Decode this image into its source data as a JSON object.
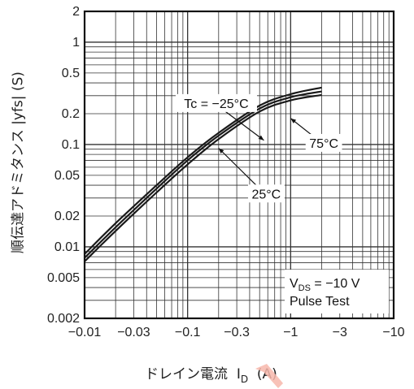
{
  "chart_data": {
    "type": "line",
    "xscale": "log",
    "yscale": "log",
    "xlim": [
      -0.01,
      -10
    ],
    "ylim": [
      0.002,
      2
    ],
    "x_ticks": [
      {
        "value": -0.01,
        "label": "−0.01"
      },
      {
        "value": -0.03,
        "label": "−0.03"
      },
      {
        "value": -0.1,
        "label": "−0.1"
      },
      {
        "value": -0.3,
        "label": "−0.3"
      },
      {
        "value": -1,
        "label": "−1"
      },
      {
        "value": -3,
        "label": "−3"
      },
      {
        "value": -10,
        "label": "−10"
      }
    ],
    "y_ticks": [
      {
        "value": 0.002,
        "label": "0.002"
      },
      {
        "value": 0.005,
        "label": "0.005"
      },
      {
        "value": 0.01,
        "label": "0.01"
      },
      {
        "value": 0.02,
        "label": "0.02"
      },
      {
        "value": 0.05,
        "label": "0.05"
      },
      {
        "value": 0.1,
        "label": "0.1"
      },
      {
        "value": 0.2,
        "label": "0.2"
      },
      {
        "value": 0.5,
        "label": "0.5"
      },
      {
        "value": 1,
        "label": "1"
      },
      {
        "value": 2,
        "label": "2"
      }
    ],
    "xlabel": "ドレイン電流",
    "xlabel_symbol": "I",
    "xlabel_subscript": "D",
    "xlabel_unit": "(A)",
    "ylabel": "順伝達アドミタンス |yfs| (S)",
    "grid": true,
    "series": [
      {
        "name": "Tc = −25°C",
        "color": "#1a1a1a",
        "x": [
          -0.01,
          -0.02,
          -0.05,
          -0.1,
          -0.2,
          -0.5,
          -1,
          -2
        ],
        "y": [
          0.0085,
          0.017,
          0.04,
          0.075,
          0.13,
          0.24,
          0.31,
          0.36
        ]
      },
      {
        "name": "75°C",
        "color": "#1a1a1a",
        "x": [
          -0.01,
          -0.02,
          -0.05,
          -0.1,
          -0.2,
          -0.5,
          -1,
          -2
        ],
        "y": [
          0.0078,
          0.0155,
          0.037,
          0.07,
          0.122,
          0.225,
          0.29,
          0.33
        ]
      },
      {
        "name": "25°C",
        "color": "#1a1a1a",
        "x": [
          -0.01,
          -0.02,
          -0.05,
          -0.1,
          -0.2,
          -0.5,
          -1,
          -2
        ],
        "y": [
          0.0072,
          0.0143,
          0.034,
          0.064,
          0.113,
          0.21,
          0.27,
          0.305
        ]
      }
    ],
    "annotations": [
      {
        "text": "Tc = −25°C",
        "x": -0.19,
        "y": 0.245,
        "arrow_to": [
          -0.55,
          0.11
        ]
      },
      {
        "text": "75°C",
        "x": -2.1,
        "y": 0.1,
        "arrow_to": [
          -1.0,
          0.18
        ]
      },
      {
        "text": "25°C",
        "x": -0.58,
        "y": 0.032,
        "arrow_to": [
          -0.2,
          0.092
        ]
      }
    ],
    "condition_box": {
      "line1_prefix": "V",
      "line1_subscript": "DS",
      "line1_rest": " = −10 V",
      "line2": "Pulse Test"
    }
  }
}
